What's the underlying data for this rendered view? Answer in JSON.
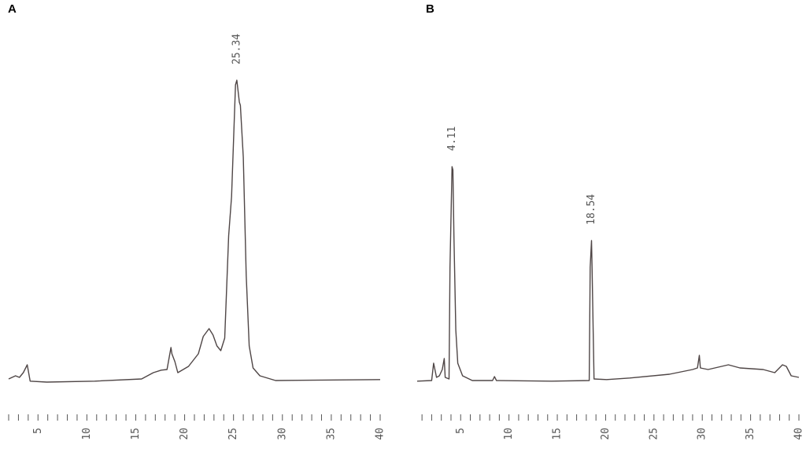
{
  "chart_data": [
    {
      "type": "line",
      "title": "A",
      "color": "#4f4646",
      "x": [
        2.0,
        2.7,
        3.1,
        3.5,
        3.9,
        4.2,
        5.9,
        10.8,
        15.6,
        16.8,
        17.6,
        18.2,
        18.6,
        18.7,
        19.0,
        19.3,
        20.4,
        21.4,
        21.9,
        22.5,
        22.9,
        23.3,
        23.7,
        24.1,
        24.5,
        24.8,
        25.2,
        25.34,
        25.6,
        25.7,
        26.0,
        26.3,
        26.6,
        27.0,
        27.7,
        29.3,
        40.0
      ],
      "values": [
        1,
        2,
        1.5,
        3,
        5.5,
        0.3,
        0,
        0.3,
        1,
        3,
        3.8,
        4,
        11,
        9,
        6.5,
        3,
        5,
        9,
        14.5,
        17,
        15,
        11.5,
        10,
        14,
        46.5,
        59,
        94.5,
        96,
        89,
        88,
        71.5,
        34,
        11.5,
        4.5,
        2,
        0.5,
        0.8
      ],
      "xlim": [
        2,
        40
      ],
      "ylim": [
        0,
        100
      ],
      "xticks": [
        5,
        10,
        15,
        20,
        25,
        30,
        35,
        40
      ],
      "xminorticks": [
        2,
        3,
        4,
        6,
        7,
        8,
        9,
        11,
        12,
        13,
        14,
        16,
        17,
        18,
        19,
        21,
        22,
        23,
        24,
        26,
        27,
        28,
        29,
        31,
        32,
        33,
        34,
        36,
        37,
        38,
        39
      ],
      "peak_labels": [
        25.34
      ]
    },
    {
      "type": "line",
      "title": "B",
      "color": "#4f4646",
      "x": [
        0.5,
        2.0,
        2.2,
        2.5,
        2.8,
        3.1,
        3.3,
        3.4,
        3.8,
        3.9,
        4.11,
        4.2,
        4.3,
        4.5,
        4.7,
        5.2,
        6.2,
        8.3,
        8.5,
        8.7,
        14.4,
        18.3,
        18.4,
        18.54,
        18.6,
        18.8,
        20.1,
        22.5,
        26.6,
        29.0,
        29.5,
        29.7,
        29.8,
        30.6,
        32.7,
        33.9,
        36.3,
        37.5,
        38.3,
        38.7,
        39.2,
        40.0
      ],
      "values": [
        0.3,
        0.5,
        6,
        1.5,
        2,
        4,
        7.5,
        1.5,
        1,
        36.5,
        68.5,
        67.5,
        46.5,
        16.5,
        6,
        2,
        0.5,
        0.5,
        1.75,
        0.5,
        0.3,
        0.5,
        36.5,
        45,
        36.5,
        1,
        0.8,
        1.3,
        2.5,
        4,
        4.5,
        8.5,
        4.5,
        4,
        5.5,
        4.5,
        4,
        3,
        5.5,
        5,
        2,
        1.5
      ],
      "xlim": [
        0.5,
        40
      ],
      "ylim": [
        0,
        100
      ],
      "xticks": [
        5,
        10,
        15,
        20,
        25,
        30,
        35,
        40
      ],
      "xminorticks": [
        1,
        2,
        3,
        4,
        6,
        7,
        8,
        9,
        11,
        12,
        13,
        14,
        16,
        17,
        18,
        19,
        21,
        22,
        23,
        24,
        26,
        27,
        28,
        29,
        31,
        32,
        33,
        34,
        36,
        37,
        38,
        39
      ],
      "peak_labels": [
        4.11,
        18.54
      ]
    }
  ]
}
